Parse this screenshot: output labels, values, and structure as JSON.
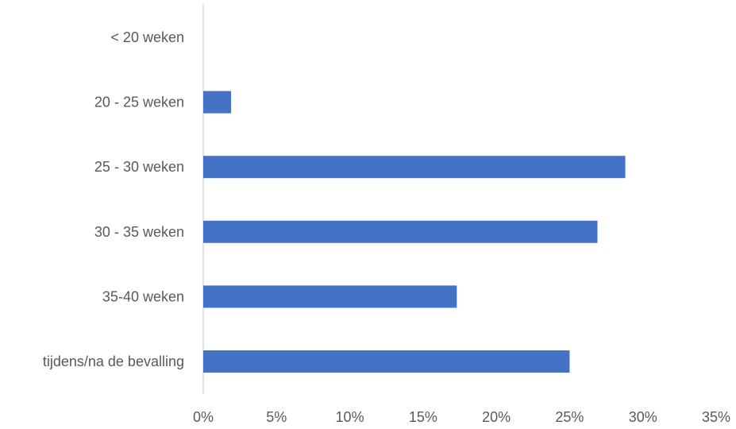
{
  "chart_data": {
    "type": "bar",
    "orientation": "horizontal",
    "categories": [
      "< 20 weken",
      "20 - 25 weken",
      "25 - 30 weken",
      "30 - 35 weken",
      "35-40 weken",
      "tijdens/na de bevalling"
    ],
    "values": [
      0,
      1.9,
      28.8,
      26.9,
      17.3,
      25.0
    ],
    "value_unit": "%",
    "xlim": [
      0,
      35
    ],
    "x_ticks": [
      "0%",
      "5%",
      "10%",
      "15%",
      "20%",
      "25%",
      "30%",
      "35%"
    ],
    "title": "",
    "xlabel": "",
    "ylabel": "",
    "grid": false,
    "legend": "none",
    "bar_color": "#4472C4",
    "axis_color": "#D9D9D9",
    "text_color": "#595959"
  }
}
